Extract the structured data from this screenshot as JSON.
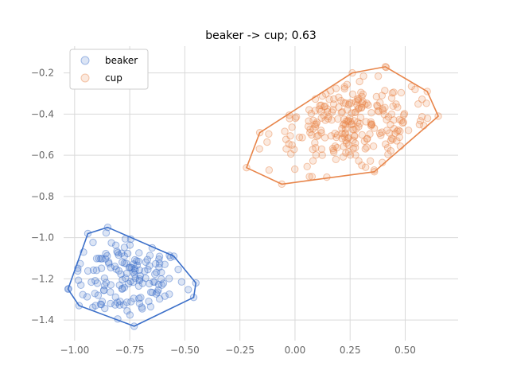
{
  "chart_data": {
    "type": "scatter",
    "title": "beaker -> cup; 0.63",
    "xlabel": "",
    "ylabel": "",
    "xlim": [
      -1.05,
      0.74
    ],
    "ylim": [
      -1.5,
      -0.07
    ],
    "grid": true,
    "legend_position": "top-left",
    "x_ticks": [
      -1.0,
      -0.75,
      -0.5,
      -0.25,
      0.0,
      0.25,
      0.5
    ],
    "x_tick_labels": [
      "−1.00",
      "−0.75",
      "−0.50",
      "−0.25",
      "0.00",
      "0.25",
      "0.50"
    ],
    "y_ticks": [
      -1.4,
      -1.2,
      -1.0,
      -0.8,
      -0.6,
      -0.4,
      -0.2
    ],
    "y_tick_labels": [
      "−1.4",
      "−1.2",
      "−1.0",
      "−0.8",
      "−0.6",
      "−0.4",
      "−0.2"
    ],
    "series": [
      {
        "name": "beaker",
        "color": "#3b6fc9",
        "center": [
          -0.76,
          -1.19
        ],
        "spread": [
          0.13,
          0.11
        ],
        "count": 150,
        "hull": [
          [
            -0.73,
            -1.43
          ],
          [
            -0.98,
            -1.33
          ],
          [
            -1.03,
            -1.25
          ],
          [
            -0.94,
            -0.98
          ],
          [
            -0.85,
            -0.95
          ],
          [
            -0.55,
            -1.09
          ],
          [
            -0.45,
            -1.22
          ],
          [
            -0.46,
            -1.29
          ]
        ]
      },
      {
        "name": "cup",
        "color": "#e8854a",
        "center": [
          0.26,
          -0.45
        ],
        "spread": [
          0.19,
          0.12
        ],
        "count": 250,
        "hull": [
          [
            -0.06,
            -0.74
          ],
          [
            -0.22,
            -0.66
          ],
          [
            -0.16,
            -0.49
          ],
          [
            0.26,
            -0.2
          ],
          [
            0.41,
            -0.17
          ],
          [
            0.6,
            -0.29
          ],
          [
            0.65,
            -0.41
          ],
          [
            0.36,
            -0.68
          ]
        ]
      }
    ]
  }
}
